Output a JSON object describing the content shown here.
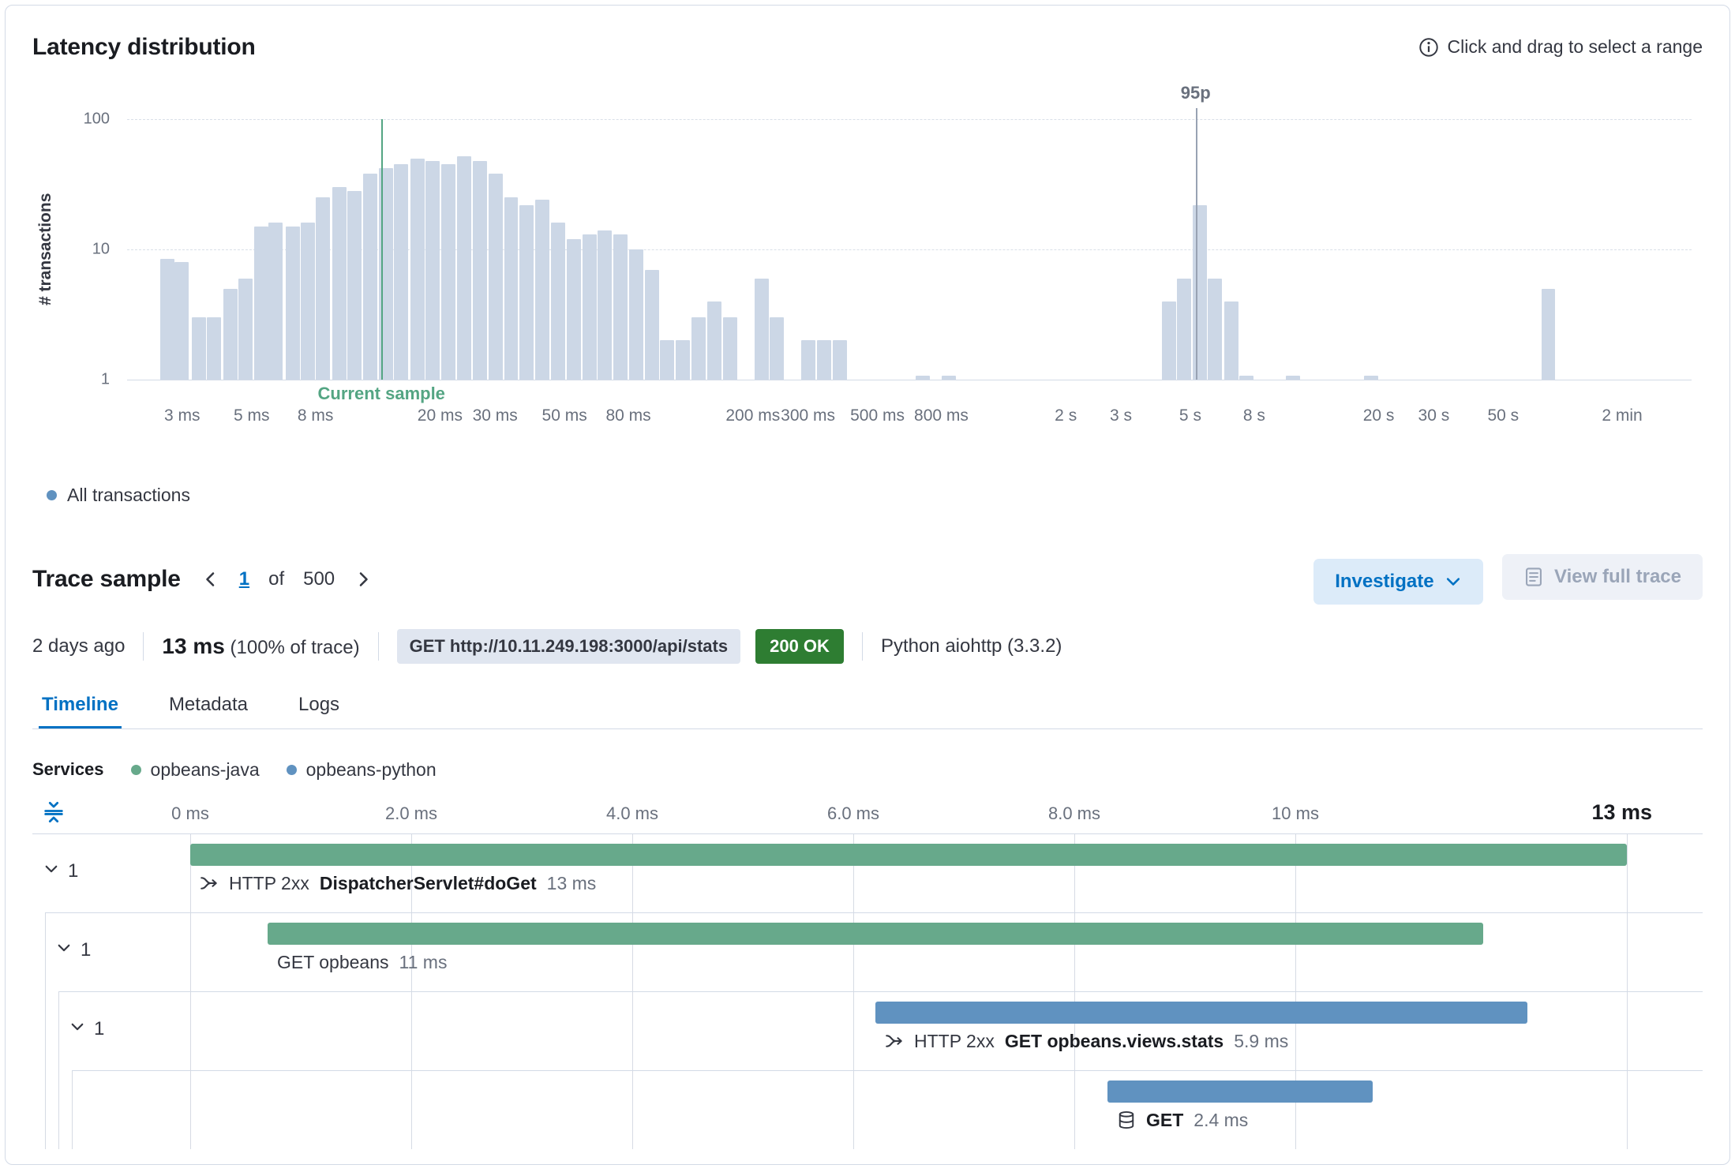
{
  "colors": {
    "histogram_bar": "#ccd7e6",
    "link": "#0071c3",
    "status_ok_bg": "#2e7d32"
  },
  "latency": {
    "title": "Latency distribution",
    "hint": "Click and drag to select a range"
  },
  "chart_data": {
    "type": "bar",
    "title": "Latency distribution",
    "ylabel": "# transactions",
    "x_scale": "log",
    "y_scale": "log",
    "x_unit": "ms",
    "x_domain_ms": [
      2,
      200000
    ],
    "y_domain": [
      1,
      100
    ],
    "yticks": [
      1,
      10,
      100
    ],
    "xticks": [
      {
        "label": "3 ms",
        "ms": 3
      },
      {
        "label": "5 ms",
        "ms": 5
      },
      {
        "label": "8 ms",
        "ms": 8
      },
      {
        "label": "20 ms",
        "ms": 20
      },
      {
        "label": "30 ms",
        "ms": 30
      },
      {
        "label": "50 ms",
        "ms": 50
      },
      {
        "label": "80 ms",
        "ms": 80
      },
      {
        "label": "200 ms",
        "ms": 200
      },
      {
        "label": "300 ms",
        "ms": 300
      },
      {
        "label": "500 ms",
        "ms": 500
      },
      {
        "label": "800 ms",
        "ms": 800
      },
      {
        "label": "2 s",
        "ms": 2000
      },
      {
        "label": "3 s",
        "ms": 3000
      },
      {
        "label": "5 s",
        "ms": 5000
      },
      {
        "label": "8 s",
        "ms": 8000
      },
      {
        "label": "20 s",
        "ms": 20000
      },
      {
        "label": "30 s",
        "ms": 30000
      },
      {
        "label": "50 s",
        "ms": 50000
      },
      {
        "label": "2 min",
        "ms": 120000
      }
    ],
    "bars_ms_count": [
      [
        2.7,
        8.5
      ],
      [
        3.0,
        8
      ],
      [
        3.4,
        3
      ],
      [
        3.8,
        3
      ],
      [
        4.3,
        5
      ],
      [
        4.8,
        6
      ],
      [
        5.4,
        15
      ],
      [
        6.0,
        16
      ],
      [
        6.8,
        15
      ],
      [
        7.6,
        16
      ],
      [
        8.5,
        25
      ],
      [
        9.6,
        30
      ],
      [
        10.7,
        28
      ],
      [
        12,
        38
      ],
      [
        13.5,
        42
      ],
      [
        15.1,
        45
      ],
      [
        17,
        50
      ],
      [
        19,
        48
      ],
      [
        21.4,
        45
      ],
      [
        24,
        52
      ],
      [
        26.9,
        48
      ],
      [
        30.2,
        38
      ],
      [
        33.9,
        25
      ],
      [
        38,
        22
      ],
      [
        42.7,
        24
      ],
      [
        47.9,
        16
      ],
      [
        53.7,
        12
      ],
      [
        60.3,
        13
      ],
      [
        67.6,
        14
      ],
      [
        75.9,
        13
      ],
      [
        85.1,
        10
      ],
      [
        95.5,
        7
      ],
      [
        107,
        2
      ],
      [
        120,
        2
      ],
      [
        135,
        3
      ],
      [
        151,
        4
      ],
      [
        170,
        3
      ],
      [
        214,
        6
      ],
      [
        240,
        3
      ],
      [
        302,
        2
      ],
      [
        339,
        2
      ],
      [
        380,
        2
      ],
      [
        700,
        1
      ],
      [
        850,
        1
      ],
      [
        4300,
        4
      ],
      [
        4800,
        6
      ],
      [
        5400,
        22
      ],
      [
        6000,
        6
      ],
      [
        6800,
        4
      ],
      [
        7600,
        1
      ],
      [
        10700,
        1
      ],
      [
        19000,
        1
      ],
      [
        70000,
        5
      ]
    ],
    "annotations": [
      {
        "label": "Current sample",
        "ms": 13,
        "color": "#54a583",
        "position": "below"
      },
      {
        "label": "95p",
        "ms": 5200,
        "color": "#98a2b3",
        "label_color": "#69707d",
        "position": "above"
      }
    ],
    "legend": [
      {
        "label": "All transactions",
        "color": "#6092c0"
      }
    ]
  },
  "trace": {
    "title": "Trace sample",
    "page": "1",
    "of_label": "of",
    "total": "500",
    "investigate_label": "Investigate",
    "view_full_trace_label": "View full trace",
    "age": "2 days ago",
    "duration": "13 ms",
    "duration_pct": "(100% of trace)",
    "url_badge": "GET http://10.11.249.198:3000/api/stats",
    "status_badge": "200 OK",
    "agent": "Python aiohttp (3.3.2)",
    "tabs": [
      {
        "label": "Timeline",
        "active": true
      },
      {
        "label": "Metadata",
        "active": false
      },
      {
        "label": "Logs",
        "active": false
      }
    ]
  },
  "waterfall": {
    "services_label": "Services",
    "service_legend": [
      {
        "label": "opbeans-java",
        "color": "#67a98b"
      },
      {
        "label": "opbeans-python",
        "color": "#6092c0"
      }
    ],
    "total_ms": 13,
    "total_label": "13 ms",
    "ticks": [
      {
        "label": "0 ms",
        "ms": 0
      },
      {
        "label": "2.0 ms",
        "ms": 2
      },
      {
        "label": "4.0 ms",
        "ms": 4
      },
      {
        "label": "6.0 ms",
        "ms": 6
      },
      {
        "label": "8.0 ms",
        "ms": 8
      },
      {
        "label": "10 ms",
        "ms": 10
      }
    ],
    "gridlines_ms": [
      0,
      2,
      4,
      6,
      8,
      10,
      13
    ],
    "rows": [
      {
        "level": 0,
        "expander": "1",
        "service_color": "#67a98b",
        "badge": "HTTP 2xx",
        "name": "DispatcherServlet#doGet",
        "name_bold": true,
        "duration": "13 ms",
        "start_ms": 0,
        "duration_ms": 13,
        "icon": "transaction"
      },
      {
        "level": 1,
        "expander": "1",
        "service_color": "#67a98b",
        "badge": "",
        "name": "GET opbeans",
        "name_bold": false,
        "duration": "11 ms",
        "start_ms": 0.7,
        "duration_ms": 11,
        "icon": ""
      },
      {
        "level": 2,
        "expander": "1",
        "service_color": "#6092c0",
        "badge": "HTTP 2xx",
        "name": "GET opbeans.views.stats",
        "name_bold": true,
        "duration": "5.9 ms",
        "start_ms": 6.2,
        "duration_ms": 5.9,
        "icon": "transaction"
      },
      {
        "level": 3,
        "expander": "",
        "service_color": "#6092c0",
        "badge": "",
        "name": "GET",
        "name_bold": true,
        "duration": "2.4 ms",
        "start_ms": 8.3,
        "duration_ms": 2.4,
        "icon": "database"
      }
    ]
  }
}
